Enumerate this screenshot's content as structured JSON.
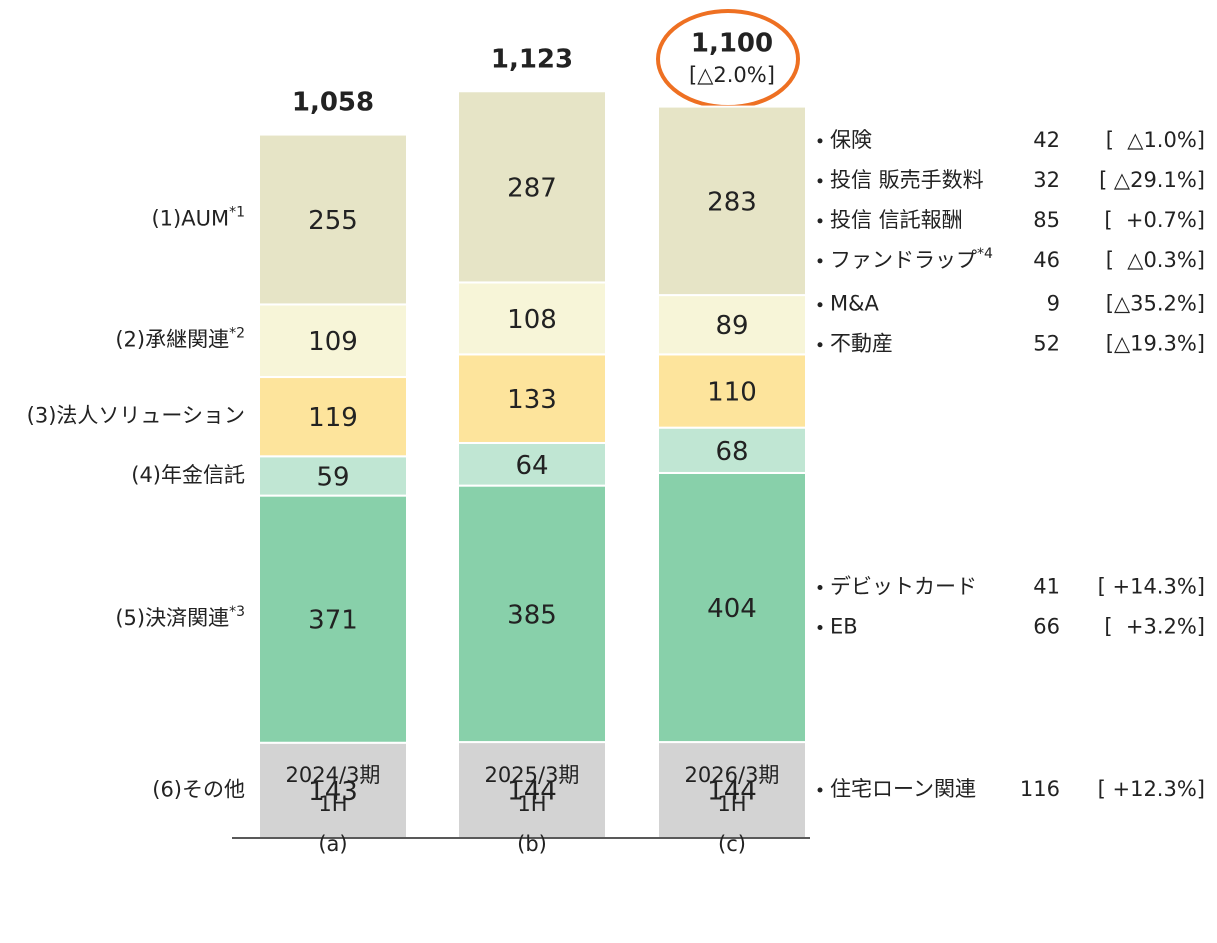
{
  "chart_data": {
    "type": "stacked-bar",
    "categories": [
      [
        "2024/3期",
        "1H",
        "(a)"
      ],
      [
        "2025/3期",
        "1H",
        "(b)"
      ],
      [
        "2026/3期",
        "1H",
        "(c)"
      ]
    ],
    "ylim": [
      0,
      1258
    ],
    "series": [
      {
        "name": "(6)その他",
        "color": "#d3d3d3",
        "values": [
          143,
          144,
          144
        ],
        "details": [
          {
            "name": "住宅ローン関連",
            "value": 116,
            "change": "[ +12.3%]"
          }
        ]
      },
      {
        "name": "(5)決済関連",
        "note": "*3",
        "color": "#88d0aa",
        "values": [
          371,
          385,
          404
        ],
        "details": [
          {
            "name": "デビットカード",
            "value": 41,
            "change": "[ +14.3%]"
          },
          {
            "name": "EB",
            "value": 66,
            "change": "[  +3.2%]"
          }
        ]
      },
      {
        "name": "(4)年金信託",
        "color": "#c0e6d3",
        "values": [
          59,
          64,
          68
        ]
      },
      {
        "name": "(3)法人ソリューション",
        "color": "#fde49c",
        "values": [
          119,
          133,
          110
        ]
      },
      {
        "name": "(2)承継関連",
        "note": "*2",
        "color": "#f7f5d8",
        "values": [
          109,
          108,
          89
        ],
        "details": [
          {
            "name": "M&A",
            "value": 9,
            "change": "[△35.2%]"
          },
          {
            "name": "不動産",
            "value": 52,
            "change": "[△19.3%]"
          }
        ]
      },
      {
        "name": "(1)AUM",
        "note": "*1",
        "color": "#e6e4c6",
        "values": [
          255,
          287,
          283
        ],
        "details": [
          {
            "name": "保険",
            "value": 42,
            "change": "[  △1.0%]"
          },
          {
            "name": "投信 販売手数料",
            "value": 32,
            "change": "[ △29.1%]"
          },
          {
            "name": "投信 信託報酬",
            "value": 85,
            "change": "[  +0.7%]"
          },
          {
            "name": "ファンドラップ",
            "note": "*4",
            "value": 46,
            "change": "[  △0.3%]"
          }
        ]
      }
    ],
    "totals": [
      1058,
      1123,
      1100
    ],
    "total_labels": [
      "1,058",
      "1,123",
      "1,100"
    ],
    "total_change": "[△2.0%]"
  }
}
